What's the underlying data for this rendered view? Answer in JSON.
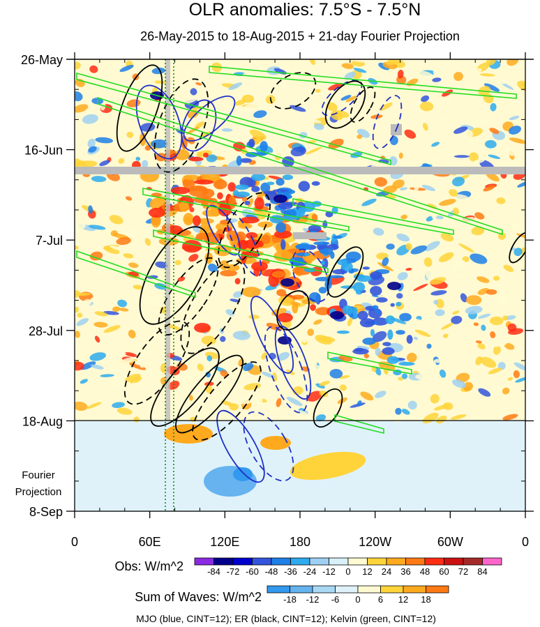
{
  "chart_data": {
    "type": "heatmap",
    "title": "OLR anomalies: 7.5°S - 7.5°N",
    "subtitle": "26-May-2015 to 18-Aug-2015 + 21-day Fourier Projection",
    "x_axis": {
      "ticks": [
        {
          "lon": 0,
          "label": "0"
        },
        {
          "lon": 60,
          "label": "60E"
        },
        {
          "lon": 120,
          "label": "120E"
        },
        {
          "lon": 180,
          "label": "180"
        },
        {
          "lon": 240,
          "label": "120W"
        },
        {
          "lon": 300,
          "label": "60W"
        },
        {
          "lon": 360,
          "label": "0"
        }
      ],
      "range": [
        0,
        360
      ]
    },
    "y_axis": {
      "ticks": [
        {
          "day": 0,
          "label": "26-May"
        },
        {
          "day": 21,
          "label": "16-Jun"
        },
        {
          "day": 42,
          "label": "7-Jul"
        },
        {
          "day": 63,
          "label": "28-Jul"
        },
        {
          "day": 84,
          "label": "18-Aug"
        },
        {
          "day": 105,
          "label": "8-Sep"
        }
      ],
      "projection_label_line1": "Fourier",
      "projection_label_line2": "Projection"
    },
    "observed_end": "18-Aug",
    "obs_colorbar": {
      "label": "Obs: W/m^2",
      "levels": [
        "-84",
        "-72",
        "-60",
        "-48",
        "-36",
        "-24",
        "-12",
        "0",
        "12",
        "24",
        "36",
        "48",
        "60",
        "72",
        "84"
      ],
      "colors": [
        "#8a2be2",
        "#00008b",
        "#0000cd",
        "#3355dd",
        "#1e7fe8",
        "#2eaaee",
        "#9fd0f2",
        "#d8f0f8",
        "#fffad2",
        "#ffd43a",
        "#ffaa1e",
        "#ff7a14",
        "#ff2d14",
        "#cc1111",
        "#a52a2a",
        "#ff66cc"
      ]
    },
    "waves_colorbar": {
      "label": "Sum of Waves: W/m^2",
      "levels": [
        "-18",
        "-12",
        "-6",
        "0",
        "6",
        "12",
        "18"
      ],
      "colors": [
        "#3399ee",
        "#66b3f0",
        "#a8d8f4",
        "#dff2fa",
        "#fffad2",
        "#ffd43a",
        "#ffaa1e",
        "#ff7a14"
      ]
    },
    "contour_overlays": [
      {
        "name": "MJO",
        "color": "#1f2fc8"
      },
      {
        "name": "ER",
        "color": "#000000"
      },
      {
        "name": "Kelvin",
        "color": "#22dd22"
      }
    ],
    "footer": "MJO (blue, CINT=12); ER (black, CINT=12); Kelvin (green, CINT=12)"
  }
}
